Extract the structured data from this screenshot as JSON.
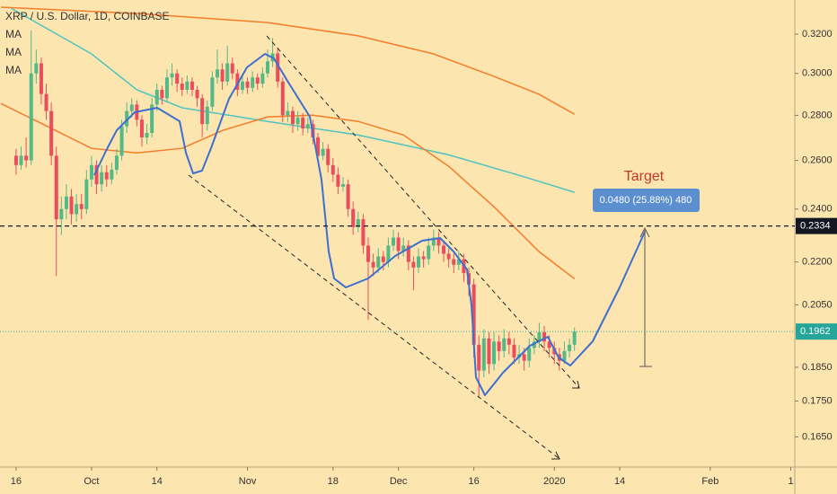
{
  "chart_data": {
    "type": "candlestick",
    "title": "XRP / U.S. Dollar, 1D, COINBASE",
    "indicator_labels": [
      "MA",
      "MA",
      "MA"
    ],
    "log_scale": true,
    "xlim": [
      -3.2,
      154.8
    ],
    "ylim": [
      0.157,
      0.3385
    ],
    "yticks": [
      {
        "value": 0.32,
        "label": "0.3200"
      },
      {
        "value": 0.3,
        "label": "0.3000"
      },
      {
        "value": 0.28,
        "label": "0.2800"
      },
      {
        "value": 0.26,
        "label": "0.2600"
      },
      {
        "value": 0.24,
        "label": "0.2400"
      },
      {
        "value": 0.22,
        "label": "0.2200"
      },
      {
        "value": 0.205,
        "label": "0.2050"
      },
      {
        "value": 0.185,
        "label": "0.1850"
      },
      {
        "value": 0.175,
        "label": "0.1750"
      },
      {
        "value": 0.165,
        "label": "0.1650"
      }
    ],
    "xticks": [
      {
        "value": 0,
        "label": "16"
      },
      {
        "value": 15,
        "label": "Oct"
      },
      {
        "value": 28,
        "label": "14"
      },
      {
        "value": 46,
        "label": "Nov"
      },
      {
        "value": 63,
        "label": "18"
      },
      {
        "value": 76,
        "label": "Dec"
      },
      {
        "value": 91,
        "label": "16"
      },
      {
        "value": 107,
        "label": "2020"
      },
      {
        "value": 120,
        "label": "14"
      },
      {
        "value": 138,
        "label": "Feb"
      },
      {
        "value": 154,
        "label": "1"
      }
    ],
    "up_color": "#53b987",
    "down_color": "#eb4d5c",
    "x": [
      0,
      1,
      2,
      3,
      4,
      5,
      6,
      7,
      8,
      9,
      10,
      11,
      12,
      13,
      14,
      15,
      16,
      17,
      18,
      19,
      20,
      21,
      22,
      23,
      24,
      25,
      26,
      27,
      28,
      29,
      30,
      31,
      32,
      33,
      34,
      35,
      36,
      37,
      38,
      39,
      40,
      41,
      42,
      43,
      44,
      45,
      46,
      47,
      48,
      49,
      50,
      51,
      52,
      53,
      54,
      55,
      56,
      57,
      58,
      59,
      60,
      61,
      62,
      63,
      64,
      65,
      66,
      67,
      68,
      69,
      70,
      71,
      72,
      73,
      74,
      75,
      76,
      77,
      78,
      79,
      80,
      81,
      82,
      83,
      84,
      85,
      86,
      87,
      88,
      89,
      90,
      91,
      92,
      93,
      94,
      95,
      96,
      97,
      98,
      99,
      100,
      101,
      102,
      103,
      104,
      105,
      106,
      107,
      108,
      109,
      110,
      111
    ],
    "candles": [
      [
        0.262,
        0.265,
        0.254,
        0.258
      ],
      [
        0.258,
        0.266,
        0.256,
        0.262
      ],
      [
        0.262,
        0.27,
        0.257,
        0.26
      ],
      [
        0.26,
        0.322,
        0.258,
        0.3
      ],
      [
        0.3,
        0.312,
        0.295,
        0.305
      ],
      [
        0.305,
        0.308,
        0.285,
        0.29
      ],
      [
        0.29,
        0.295,
        0.278,
        0.282
      ],
      [
        0.282,
        0.286,
        0.258,
        0.262
      ],
      [
        0.262,
        0.266,
        0.215,
        0.236
      ],
      [
        0.236,
        0.245,
        0.23,
        0.24
      ],
      [
        0.24,
        0.25,
        0.236,
        0.245
      ],
      [
        0.245,
        0.248,
        0.234,
        0.238
      ],
      [
        0.238,
        0.246,
        0.235,
        0.242
      ],
      [
        0.242,
        0.246,
        0.236,
        0.24
      ],
      [
        0.24,
        0.256,
        0.238,
        0.252
      ],
      [
        0.252,
        0.262,
        0.249,
        0.258
      ],
      [
        0.258,
        0.26,
        0.246,
        0.25
      ],
      [
        0.25,
        0.258,
        0.247,
        0.255
      ],
      [
        0.255,
        0.258,
        0.249,
        0.252
      ],
      [
        0.252,
        0.259,
        0.25,
        0.256
      ],
      [
        0.256,
        0.265,
        0.254,
        0.262
      ],
      [
        0.262,
        0.278,
        0.26,
        0.275
      ],
      [
        0.275,
        0.286,
        0.272,
        0.282
      ],
      [
        0.282,
        0.288,
        0.279,
        0.285
      ],
      [
        0.285,
        0.287,
        0.275,
        0.278
      ],
      [
        0.278,
        0.28,
        0.266,
        0.27
      ],
      [
        0.27,
        0.276,
        0.267,
        0.272
      ],
      [
        0.272,
        0.288,
        0.27,
        0.285
      ],
      [
        0.285,
        0.295,
        0.282,
        0.292
      ],
      [
        0.292,
        0.294,
        0.285,
        0.288
      ],
      [
        0.288,
        0.302,
        0.286,
        0.298
      ],
      [
        0.298,
        0.305,
        0.294,
        0.3
      ],
      [
        0.3,
        0.302,
        0.291,
        0.295
      ],
      [
        0.295,
        0.298,
        0.289,
        0.292
      ],
      [
        0.292,
        0.299,
        0.29,
        0.296
      ],
      [
        0.296,
        0.298,
        0.289,
        0.292
      ],
      [
        0.292,
        0.294,
        0.284,
        0.288
      ],
      [
        0.288,
        0.29,
        0.27,
        0.276
      ],
      [
        0.276,
        0.287,
        0.273,
        0.284
      ],
      [
        0.284,
        0.301,
        0.282,
        0.298
      ],
      [
        0.298,
        0.312,
        0.295,
        0.302
      ],
      [
        0.302,
        0.305,
        0.292,
        0.296
      ],
      [
        0.296,
        0.314,
        0.294,
        0.305
      ],
      [
        0.305,
        0.308,
        0.297,
        0.3
      ],
      [
        0.3,
        0.302,
        0.289,
        0.292
      ],
      [
        0.292,
        0.299,
        0.29,
        0.296
      ],
      [
        0.296,
        0.298,
        0.29,
        0.293
      ],
      [
        0.293,
        0.301,
        0.291,
        0.298
      ],
      [
        0.298,
        0.3,
        0.292,
        0.295
      ],
      [
        0.295,
        0.303,
        0.293,
        0.3
      ],
      [
        0.3,
        0.312,
        0.298,
        0.306
      ],
      [
        0.306,
        0.318,
        0.303,
        0.31
      ],
      [
        0.31,
        0.313,
        0.293,
        0.296
      ],
      [
        0.296,
        0.298,
        0.277,
        0.28
      ],
      [
        0.28,
        0.286,
        0.277,
        0.282
      ],
      [
        0.282,
        0.284,
        0.272,
        0.276
      ],
      [
        0.276,
        0.282,
        0.273,
        0.279
      ],
      [
        0.279,
        0.281,
        0.271,
        0.274
      ],
      [
        0.274,
        0.279,
        0.272,
        0.276
      ],
      [
        0.276,
        0.278,
        0.267,
        0.27
      ],
      [
        0.27,
        0.272,
        0.259,
        0.262
      ],
      [
        0.262,
        0.268,
        0.26,
        0.265
      ],
      [
        0.265,
        0.267,
        0.255,
        0.258
      ],
      [
        0.258,
        0.261,
        0.251,
        0.254
      ],
      [
        0.254,
        0.257,
        0.246,
        0.249
      ],
      [
        0.249,
        0.253,
        0.247,
        0.25
      ],
      [
        0.25,
        0.252,
        0.237,
        0.24
      ],
      [
        0.24,
        0.243,
        0.23,
        0.233
      ],
      [
        0.233,
        0.239,
        0.231,
        0.236
      ],
      [
        0.236,
        0.238,
        0.223,
        0.226
      ],
      [
        0.226,
        0.229,
        0.2,
        0.22
      ],
      [
        0.22,
        0.223,
        0.215,
        0.218
      ],
      [
        0.218,
        0.225,
        0.216,
        0.222
      ],
      [
        0.222,
        0.224,
        0.217,
        0.22
      ],
      [
        0.22,
        0.229,
        0.218,
        0.226
      ],
      [
        0.226,
        0.232,
        0.224,
        0.229
      ],
      [
        0.229,
        0.231,
        0.221,
        0.224
      ],
      [
        0.224,
        0.229,
        0.222,
        0.226
      ],
      [
        0.226,
        0.228,
        0.217,
        0.22
      ],
      [
        0.22,
        0.222,
        0.21,
        0.218
      ],
      [
        0.218,
        0.225,
        0.216,
        0.222
      ],
      [
        0.222,
        0.224,
        0.218,
        0.221
      ],
      [
        0.221,
        0.229,
        0.219,
        0.226
      ],
      [
        0.226,
        0.232,
        0.224,
        0.229
      ],
      [
        0.229,
        0.231,
        0.223,
        0.226
      ],
      [
        0.226,
        0.228,
        0.22,
        0.223
      ],
      [
        0.223,
        0.225,
        0.218,
        0.221
      ],
      [
        0.221,
        0.223,
        0.216,
        0.219
      ],
      [
        0.219,
        0.224,
        0.217,
        0.221
      ],
      [
        0.221,
        0.223,
        0.213,
        0.216
      ],
      [
        0.216,
        0.218,
        0.208,
        0.212
      ],
      [
        0.212,
        0.214,
        0.188,
        0.192
      ],
      [
        0.192,
        0.195,
        0.176,
        0.184
      ],
      [
        0.184,
        0.197,
        0.182,
        0.194
      ],
      [
        0.194,
        0.196,
        0.183,
        0.186
      ],
      [
        0.186,
        0.196,
        0.184,
        0.193
      ],
      [
        0.193,
        0.195,
        0.187,
        0.19
      ],
      [
        0.19,
        0.197,
        0.188,
        0.194
      ],
      [
        0.194,
        0.196,
        0.189,
        0.192
      ],
      [
        0.192,
        0.194,
        0.186,
        0.188
      ],
      [
        0.188,
        0.192,
        0.186,
        0.189
      ],
      [
        0.189,
        0.191,
        0.184,
        0.187
      ],
      [
        0.187,
        0.194,
        0.185,
        0.191
      ],
      [
        0.191,
        0.195,
        0.189,
        0.193
      ],
      [
        0.193,
        0.199,
        0.191,
        0.196
      ],
      [
        0.196,
        0.198,
        0.19,
        0.193
      ],
      [
        0.193,
        0.195,
        0.188,
        0.191
      ],
      [
        0.191,
        0.193,
        0.186,
        0.189
      ],
      [
        0.189,
        0.191,
        0.184,
        0.187
      ],
      [
        0.187,
        0.193,
        0.186,
        0.19
      ],
      [
        0.19,
        0.194,
        0.188,
        0.192
      ],
      [
        0.192,
        0.1975,
        0.19,
        0.1962
      ]
    ],
    "series": [
      {
        "color": "#f57c2a",
        "x": [
          -3,
          24,
          50,
          68,
          83,
          95,
          104,
          111
        ],
        "values": [
          0.3345,
          0.3311,
          0.3262,
          0.3191,
          0.3098,
          0.2985,
          0.2898,
          0.2805
        ]
      },
      {
        "color": "#4fc3c0",
        "x": [
          -1,
          15,
          24,
          33,
          50,
          68,
          86,
          100,
          111
        ],
        "values": [
          0.334,
          0.3098,
          0.292,
          0.2835,
          0.2772,
          0.2711,
          0.2624,
          0.2537,
          0.2467
        ]
      },
      {
        "color": "#f57c2a",
        "x": [
          -3,
          6,
          15,
          24,
          33,
          41,
          50,
          59,
          68,
          77,
          86,
          95,
          104,
          111
        ],
        "values": [
          0.2855,
          0.2752,
          0.2652,
          0.2632,
          0.2652,
          0.2731,
          0.2793,
          0.2801,
          0.2772,
          0.2711,
          0.2575,
          0.2409,
          0.2237,
          0.214
        ]
      }
    ],
    "price_lines": [
      {
        "value": 0.2334,
        "color": "#131722"
      },
      {
        "value": 0.1962,
        "color": "#26a69a"
      }
    ],
    "annotations": {
      "target": "Target",
      "measure": "0.0480 (25.88%) 480"
    }
  }
}
